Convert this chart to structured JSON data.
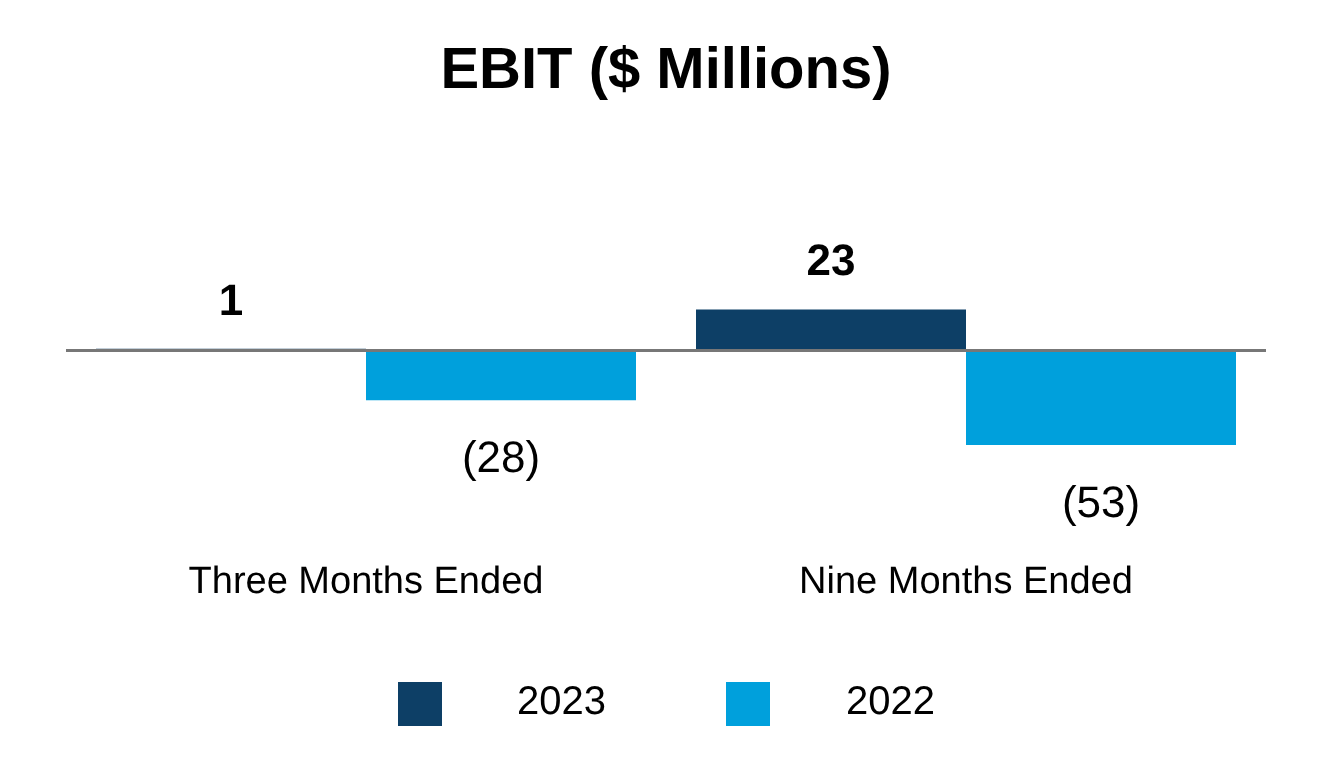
{
  "chart_data": {
    "type": "bar",
    "title": "EBIT ($ Millions)",
    "categories": [
      "Three Months Ended",
      "Nine Months Ended"
    ],
    "series": [
      {
        "name": "2023",
        "color": "#0d3f66",
        "values": [
          1,
          23
        ],
        "value_labels": [
          "1",
          "23"
        ]
      },
      {
        "name": "2022",
        "color": "#00a0dc",
        "values": [
          -28,
          -53
        ],
        "value_labels": [
          "(28)",
          "(53)"
        ]
      }
    ],
    "legend": "bottom",
    "grid": false
  }
}
